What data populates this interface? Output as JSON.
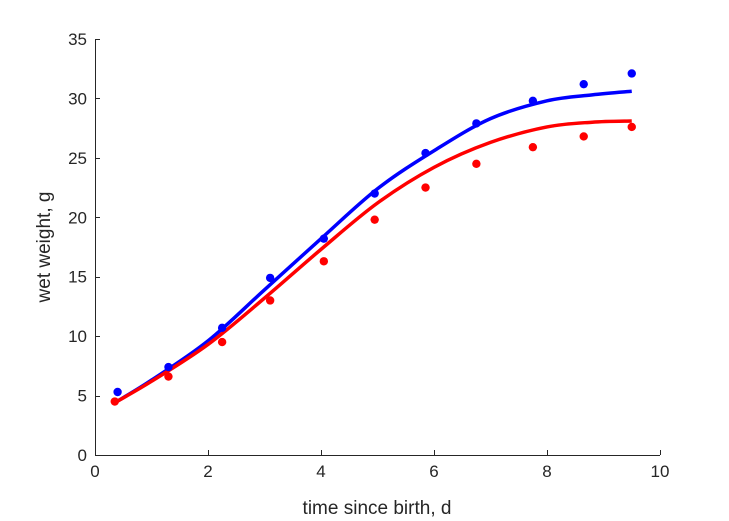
{
  "chart_data": {
    "type": "scatter",
    "title": "",
    "xlabel": "time since birth, d",
    "ylabel": "wet weight, g",
    "xlim": [
      0,
      10
    ],
    "ylim": [
      0,
      35
    ],
    "xticks": [
      0,
      2,
      4,
      6,
      8,
      10
    ],
    "yticks": [
      0,
      5,
      10,
      15,
      20,
      25,
      30,
      35
    ],
    "grid": false,
    "legend": "none",
    "series": [
      {
        "color": "#0000ff",
        "points_x": [
          0.4,
          1.3,
          2.25,
          3.1,
          4.05,
          4.95,
          5.85,
          6.75,
          7.75,
          8.65,
          9.5
        ],
        "points_y": [
          5.3,
          7.4,
          10.7,
          14.9,
          18.2,
          22.0,
          25.4,
          27.9,
          29.8,
          31.2,
          32.1
        ],
        "fit_x": [
          0.35,
          1.0,
          2.0,
          3.0,
          4.0,
          5.0,
          6.0,
          7.0,
          8.0,
          8.8,
          9.5
        ],
        "fit_y": [
          4.4,
          6.3,
          9.6,
          13.9,
          18.2,
          22.4,
          25.6,
          28.3,
          29.8,
          30.3,
          30.6
        ]
      },
      {
        "color": "#ff0000",
        "points_x": [
          0.35,
          1.3,
          2.25,
          3.1,
          4.05,
          4.95,
          5.85,
          6.75,
          7.75,
          8.65,
          9.5
        ],
        "points_y": [
          4.5,
          6.6,
          9.5,
          13.0,
          16.3,
          19.8,
          22.5,
          24.5,
          25.9,
          26.8,
          27.6
        ],
        "fit_x": [
          0.35,
          1.0,
          2.0,
          3.0,
          4.0,
          5.0,
          6.0,
          7.0,
          8.0,
          8.8,
          9.5
        ],
        "fit_y": [
          4.4,
          6.2,
          9.3,
          13.2,
          17.3,
          21.2,
          24.2,
          26.3,
          27.6,
          28.0,
          28.1
        ]
      }
    ]
  }
}
